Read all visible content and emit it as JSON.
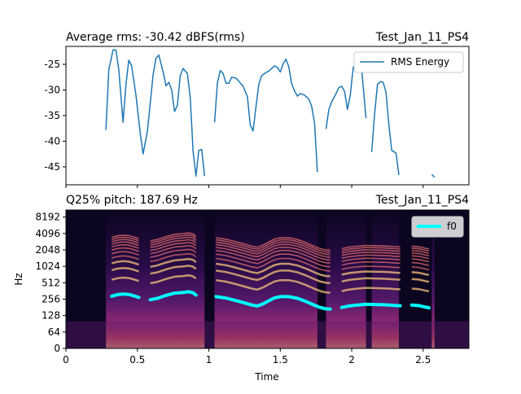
{
  "chart_data": [
    {
      "type": "line",
      "title_left": "Average rms: -30.42  dBFS(rms)",
      "title_right": "Test_Jan_11_PS4",
      "xlabel": "",
      "ylabel": "",
      "xlim": [
        0,
        2.82
      ],
      "ylim": [
        -48.5,
        -21.5
      ],
      "yticks": [
        "-25",
        "-30",
        "-35",
        "-40",
        "-45"
      ],
      "ytick_values": [
        -25,
        -30,
        -35,
        -40,
        -45
      ],
      "legend": "top-right",
      "color": "#1f77b4",
      "series": [
        {
          "name": "RMS Energy",
          "segments": [
            [
              [
                0.28,
                -37.8
              ],
              [
                0.3,
                -26
              ],
              [
                0.33,
                -22.2
              ],
              [
                0.35,
                -22.2
              ],
              [
                0.37,
                -26
              ],
              [
                0.4,
                -36.3
              ],
              [
                0.42,
                -29
              ],
              [
                0.44,
                -24.2
              ],
              [
                0.46,
                -25.3
              ],
              [
                0.49,
                -31
              ],
              [
                0.52,
                -38.5
              ],
              [
                0.54,
                -42.5
              ],
              [
                0.57,
                -38
              ],
              [
                0.59,
                -32.5
              ],
              [
                0.61,
                -27
              ],
              [
                0.63,
                -23.8
              ],
              [
                0.65,
                -23.2
              ],
              [
                0.68,
                -26.5
              ],
              [
                0.7,
                -29.2
              ],
              [
                0.72,
                -28.5
              ],
              [
                0.74,
                -30
              ],
              [
                0.76,
                -34.2
              ],
              [
                0.78,
                -33
              ],
              [
                0.8,
                -27.2
              ],
              [
                0.82,
                -25.8
              ],
              [
                0.85,
                -26.8
              ],
              [
                0.87,
                -31.5
              ],
              [
                0.89,
                -42
              ],
              [
                0.91,
                -46.8
              ],
              [
                0.93,
                -41.8
              ],
              [
                0.95,
                -41.6
              ],
              [
                0.97,
                -46.8
              ]
            ],
            [
              [
                1.04,
                -36.3
              ],
              [
                1.06,
                -28.6
              ],
              [
                1.08,
                -26.2
              ],
              [
                1.1,
                -26.8
              ],
              [
                1.12,
                -28.7
              ],
              [
                1.14,
                -28.7
              ],
              [
                1.16,
                -27.5
              ],
              [
                1.19,
                -27.7
              ],
              [
                1.21,
                -28.3
              ],
              [
                1.24,
                -29.3
              ],
              [
                1.27,
                -31.3
              ],
              [
                1.29,
                -36.8
              ],
              [
                1.31,
                -38
              ],
              [
                1.33,
                -33.2
              ],
              [
                1.35,
                -28.8
              ],
              [
                1.37,
                -27.2
              ],
              [
                1.4,
                -26.6
              ],
              [
                1.42,
                -26.3
              ],
              [
                1.44,
                -25.8
              ],
              [
                1.46,
                -25.3
              ],
              [
                1.48,
                -25.6
              ],
              [
                1.5,
                -26.5
              ],
              [
                1.52,
                -24.9
              ],
              [
                1.54,
                -24
              ],
              [
                1.56,
                -25.5
              ],
              [
                1.58,
                -28.8
              ],
              [
                1.6,
                -30.2
              ],
              [
                1.62,
                -31.2
              ],
              [
                1.64,
                -30.7
              ],
              [
                1.67,
                -31
              ],
              [
                1.7,
                -31.8
              ],
              [
                1.72,
                -33.2
              ],
              [
                1.74,
                -36.5
              ],
              [
                1.76,
                -46
              ]
            ],
            [
              [
                1.82,
                -37.6
              ],
              [
                1.84,
                -33.8
              ],
              [
                1.86,
                -32.3
              ],
              [
                1.89,
                -30.7
              ],
              [
                1.91,
                -29.5
              ],
              [
                1.93,
                -29.3
              ],
              [
                1.95,
                -30.3
              ],
              [
                1.97,
                -33.8
              ],
              [
                1.99,
                -31
              ],
              [
                2.01,
                -25.7
              ],
              [
                2.03,
                -24.6
              ],
              [
                2.05,
                -24.4
              ],
              [
                2.07,
                -26.2
              ],
              [
                2.1,
                -35.5
              ]
            ],
            [
              [
                2.14,
                -42.1
              ],
              [
                2.16,
                -34.8
              ],
              [
                2.18,
                -28.9
              ],
              [
                2.2,
                -28.4
              ],
              [
                2.22,
                -28.5
              ],
              [
                2.24,
                -30.5
              ],
              [
                2.26,
                -36.8
              ],
              [
                2.28,
                -41.8
              ],
              [
                2.31,
                -42.3
              ],
              [
                2.33,
                -46.6
              ]
            ],
            [
              [
                2.56,
                -46.5
              ],
              [
                2.58,
                -47
              ]
            ]
          ]
        }
      ]
    },
    {
      "type": "heatmap",
      "title_left": "Q25% pitch: 187.69  Hz",
      "title_right": "Test_Jan_11_PS4",
      "xlabel": "Time",
      "ylabel": "Hz",
      "xlim": [
        0,
        2.82
      ],
      "xticks": [
        "0",
        "0.5",
        "1",
        "1.5",
        "2",
        "2.5"
      ],
      "xtick_values": [
        0,
        0.5,
        1,
        1.5,
        2,
        2.5
      ],
      "yticks": [
        "0",
        "64",
        "128",
        "256",
        "512",
        "1024",
        "2048",
        "4096",
        "8192"
      ],
      "ytick_values": [
        0,
        64,
        128,
        256,
        512,
        1024,
        2048,
        4096,
        8192
      ],
      "legend": "top-right",
      "f0_color": "#00ffff",
      "series": [
        {
          "name": "f0",
          "segments": [
            [
              [
                0.32,
                290
              ],
              [
                0.36,
                310
              ],
              [
                0.4,
                318
              ],
              [
                0.44,
                312
              ],
              [
                0.48,
                292
              ],
              [
                0.51,
                275
              ]
            ],
            [
              [
                0.59,
                250
              ],
              [
                0.64,
                265
              ],
              [
                0.7,
                300
              ],
              [
                0.76,
                330
              ],
              [
                0.82,
                340
              ],
              [
                0.86,
                350
              ],
              [
                0.89,
                335
              ],
              [
                0.91,
                305
              ]
            ],
            [
              [
                1.05,
                285
              ],
              [
                1.12,
                268
              ],
              [
                1.18,
                245
              ],
              [
                1.24,
                222
              ],
              [
                1.3,
                200
              ],
              [
                1.34,
                192
              ],
              [
                1.38,
                210
              ],
              [
                1.42,
                240
              ],
              [
                1.46,
                270
              ],
              [
                1.5,
                285
              ],
              [
                1.56,
                285
              ],
              [
                1.62,
                265
              ],
              [
                1.68,
                232
              ],
              [
                1.74,
                198
              ],
              [
                1.78,
                180
              ],
              [
                1.82,
                170
              ],
              [
                1.85,
                168
              ]
            ],
            [
              [
                1.93,
                180
              ],
              [
                1.98,
                192
              ],
              [
                2.04,
                200
              ],
              [
                2.1,
                206
              ],
              [
                2.16,
                204
              ],
              [
                2.22,
                202
              ],
              [
                2.26,
                200
              ],
              [
                2.3,
                196
              ],
              [
                2.34,
                194
              ]
            ],
            [
              [
                2.42,
                200
              ],
              [
                2.47,
                195
              ],
              [
                2.52,
                182
              ],
              [
                2.54,
                178
              ]
            ]
          ]
        }
      ]
    }
  ]
}
